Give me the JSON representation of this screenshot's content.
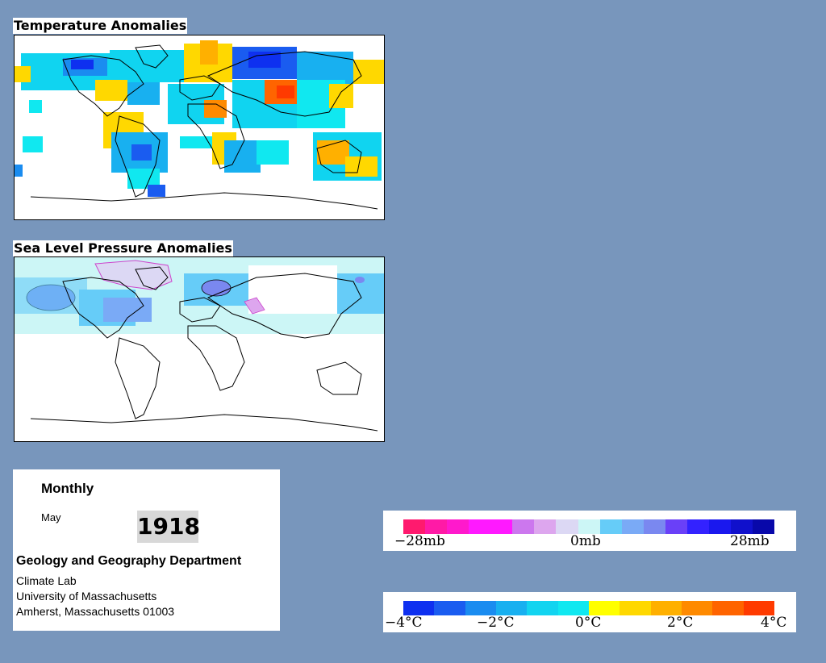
{
  "temperature_map": {
    "title": "Temperature Anomalies"
  },
  "pressure_map": {
    "title": "Sea Level Pressure Anomalies"
  },
  "info": {
    "period": "Monthly",
    "month": "May",
    "year": "1918",
    "department": "Geology and Geography Department",
    "lab": "Climate Lab",
    "university": "University of Massachusetts",
    "address": "Amherst, Massachusetts 01003"
  },
  "pressure_legend": {
    "labels": {
      "min": "−28mb",
      "mid": "0mb",
      "max": "28mb"
    },
    "colors": [
      "#ff1a6e",
      "#ff1aa6",
      "#ff19cc",
      "#ff19ff",
      "#ff19ff",
      "#cc77ee",
      "#dda6ee",
      "#dcd8f4",
      "#ccf6f6",
      "#66ccf8",
      "#7aaaf6",
      "#7a88f0",
      "#6a40f8",
      "#3322ff",
      "#1a18ee",
      "#1010cc",
      "#0808aa"
    ]
  },
  "temperature_legend": {
    "labels": {
      "m4": "−4°C",
      "m2": "−2°C",
      "z": "0°C",
      "p2": "2°C",
      "p4": "4°C"
    },
    "colors": [
      "#0e30f0",
      "#1a5cf0",
      "#1a8cf0",
      "#18b0f0",
      "#12d4f0",
      "#10e8f0",
      "#ffff00",
      "#ffd800",
      "#ffb000",
      "#ff8a00",
      "#ff6400",
      "#ff3a00"
    ]
  }
}
